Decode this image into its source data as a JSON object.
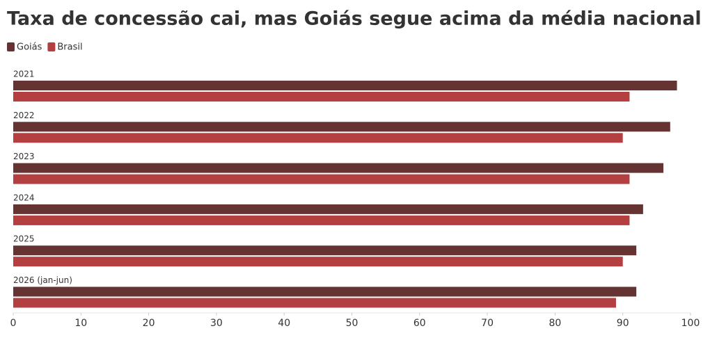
{
  "chart_data": {
    "type": "hbar",
    "title": "Taxa de concessão cai, mas Goiás segue acima da média nacional",
    "categories": [
      "2021",
      "2022",
      "2023",
      "2024",
      "2025",
      "2026 (jan-jun)"
    ],
    "series": [
      {
        "name": "Goiás",
        "color": "#663333",
        "values": [
          98,
          97,
          96,
          93,
          92,
          92
        ]
      },
      {
        "name": "Brasil",
        "color": "#b33f40",
        "values": [
          91,
          90,
          91,
          91,
          90,
          89
        ]
      }
    ],
    "xlim": [
      0,
      100
    ],
    "xticks": [
      0,
      10,
      20,
      30,
      40,
      50,
      60,
      70,
      80,
      90,
      100
    ]
  }
}
